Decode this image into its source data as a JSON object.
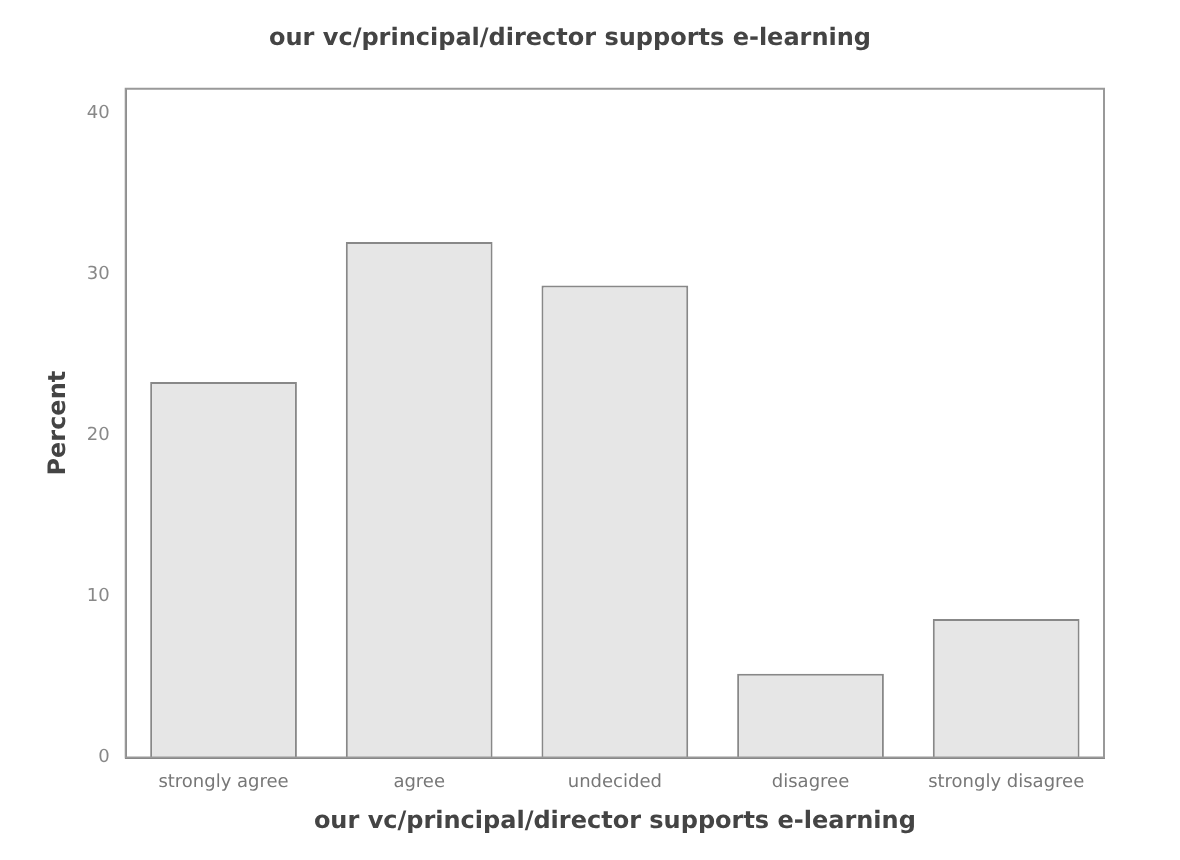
{
  "chart_data": {
    "type": "bar",
    "title": "our vc/principal/director supports e-learning",
    "xlabel": "our vc/principal/director supports e-learning",
    "ylabel": "Percent",
    "categories": [
      "strongly agree",
      "agree",
      "undecided",
      "disagree",
      "strongly disagree"
    ],
    "values": [
      23.3,
      32.0,
      29.3,
      5.2,
      8.6
    ],
    "color": "#e6e6e6",
    "ylim": [
      0,
      41.5
    ],
    "yticks": [
      0,
      10,
      20,
      30,
      40
    ],
    "grid": false,
    "legend": false
  }
}
